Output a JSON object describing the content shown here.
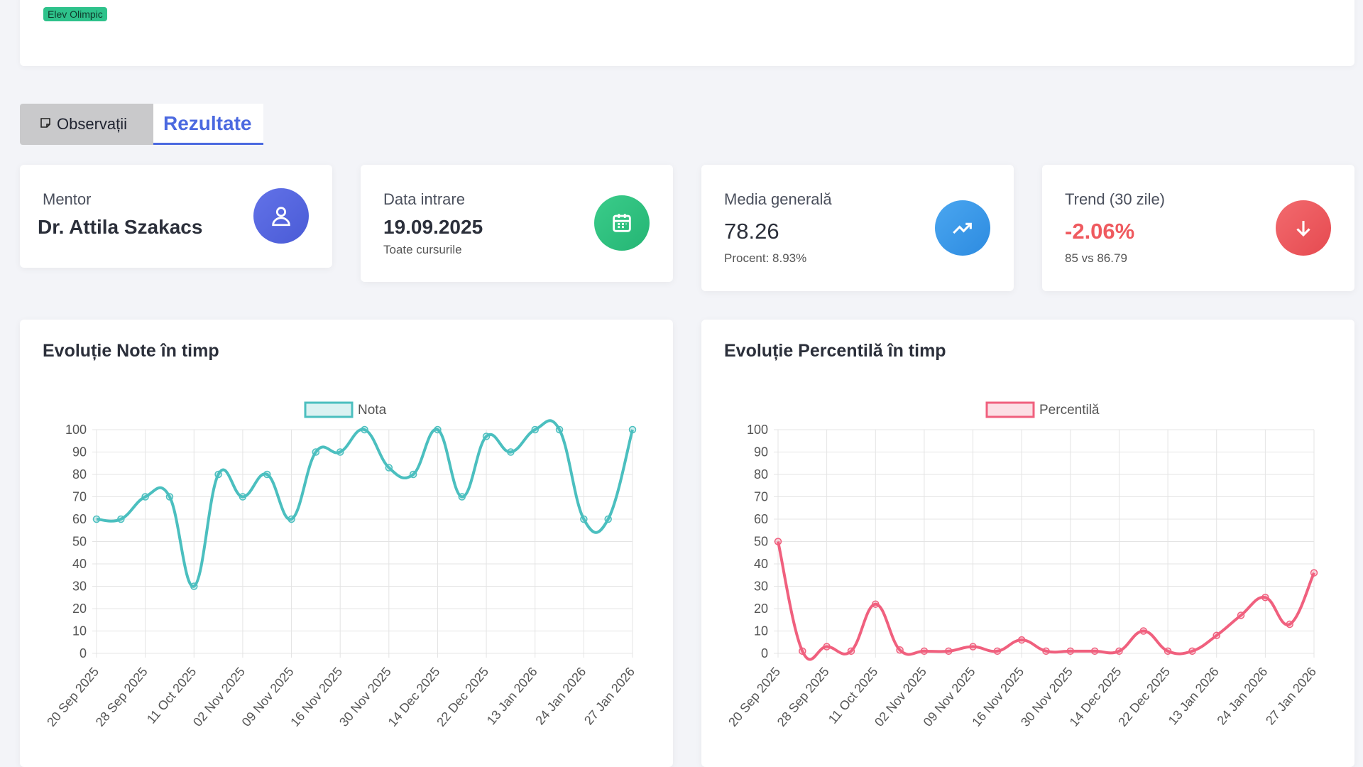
{
  "profile": {
    "badge": "Elev Olimpic"
  },
  "tabs": [
    {
      "label": "Observații",
      "icon": "note-icon"
    },
    {
      "label": "Rezultate"
    }
  ],
  "stats": {
    "mentor": {
      "label": "Mentor",
      "value": "Dr. Attila Szakacs",
      "icon": "user-icon",
      "color": "#5568e0"
    },
    "entry": {
      "label": "Data intrare",
      "value": "19.09.2025",
      "sub": "Toate cursurile",
      "icon": "calendar-icon",
      "color": "#2ec27e"
    },
    "average": {
      "label": "Media generală",
      "value": "78.26",
      "sub": "Procent: 8.93%",
      "icon": "trend-up-icon",
      "color": "#3d9be9"
    },
    "trend": {
      "label": "Trend (30 zile)",
      "value": "-2.06%",
      "sub": "85 vs 86.79",
      "icon": "arrow-down-icon",
      "color": "#ef5a5f"
    }
  },
  "chart_data": [
    {
      "type": "line",
      "title": "Evoluție Note în timp",
      "series_name": "Nota",
      "color": "#4bbfbf",
      "ylim": [
        0,
        100
      ],
      "yticks": [
        0,
        10,
        20,
        30,
        40,
        50,
        60,
        70,
        80,
        90,
        100
      ],
      "tick_labels": [
        "20 Sep 2025",
        "28 Sep 2025",
        "11 Oct 2025",
        "02 Nov 2025",
        "09 Nov 2025",
        "16 Nov 2025",
        "30 Nov 2025",
        "14 Dec 2025",
        "22 Dec 2025",
        "13 Jan 2026",
        "24 Jan 2026",
        "27 Jan 2026"
      ],
      "values": [
        60,
        60,
        70,
        70,
        30,
        80,
        70,
        80,
        60,
        90,
        90,
        100,
        83,
        80,
        100,
        70,
        97,
        90,
        100,
        100,
        60,
        60,
        100
      ],
      "grid": true,
      "legend": "top"
    },
    {
      "type": "line",
      "title": "Evoluție Percentilă în timp",
      "series_name": "Percentilă",
      "color": "#f0607e",
      "ylim": [
        0,
        100
      ],
      "yticks": [
        0,
        10,
        20,
        30,
        40,
        50,
        60,
        70,
        80,
        90,
        100
      ],
      "tick_labels": [
        "20 Sep 2025",
        "28 Sep 2025",
        "11 Oct 2025",
        "02 Nov 2025",
        "09 Nov 2025",
        "16 Nov 2025",
        "30 Nov 2025",
        "14 Dec 2025",
        "22 Dec 2025",
        "13 Jan 2026",
        "24 Jan 2026",
        "27 Jan 2026"
      ],
      "values": [
        50,
        1,
        3,
        1,
        22,
        1.5,
        1,
        1,
        3,
        1,
        6,
        1,
        1,
        1,
        1,
        10,
        1,
        1,
        8,
        17,
        25,
        13,
        36
      ],
      "grid": true,
      "legend": "top"
    }
  ]
}
